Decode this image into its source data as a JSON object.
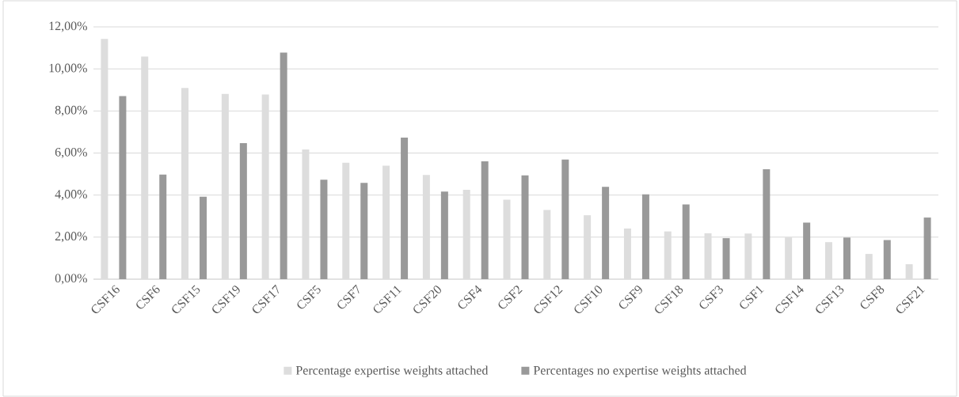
{
  "chart_data": {
    "type": "bar",
    "categories": [
      "CSF16",
      "CSF6",
      "CSF15",
      "CSF19",
      "CSF17",
      "CSF5",
      "CSF7",
      "CSF11",
      "CSF20",
      "CSF4",
      "CSF2",
      "CSF12",
      "CSF10",
      "CSF9",
      "CSF18",
      "CSF3",
      "CSF1",
      "CSF14",
      "CSF13",
      "CSF8",
      "CSF21"
    ],
    "series": [
      {
        "name": "Percentage expertise weights attached",
        "color": "#dddddd",
        "values": [
          11.43,
          10.59,
          9.09,
          8.81,
          8.78,
          6.17,
          5.54,
          5.4,
          4.96,
          4.25,
          3.78,
          3.29,
          3.04,
          2.41,
          2.27,
          2.18,
          2.17,
          1.99,
          1.76,
          1.2,
          0.71
        ]
      },
      {
        "name": "Percentages no expertise weights attached",
        "color": "#999999",
        "values": [
          8.71,
          4.97,
          3.92,
          6.47,
          10.78,
          4.73,
          4.58,
          6.73,
          4.17,
          5.6,
          4.94,
          5.69,
          4.39,
          4.03,
          3.55,
          1.95,
          5.23,
          2.69,
          1.98,
          1.86,
          2.93
        ]
      }
    ],
    "ylim": [
      0,
      12
    ],
    "yticks": [
      {
        "value": 0,
        "label": "0,00%"
      },
      {
        "value": 2,
        "label": "2,00%"
      },
      {
        "value": 4,
        "label": "4,00%"
      },
      {
        "value": 6,
        "label": "6,00%"
      },
      {
        "value": 8,
        "label": "8,00%"
      },
      {
        "value": 10,
        "label": "10,00%"
      },
      {
        "value": 12,
        "label": "12,00%"
      }
    ],
    "grid": "y",
    "legend": "bottom"
  }
}
